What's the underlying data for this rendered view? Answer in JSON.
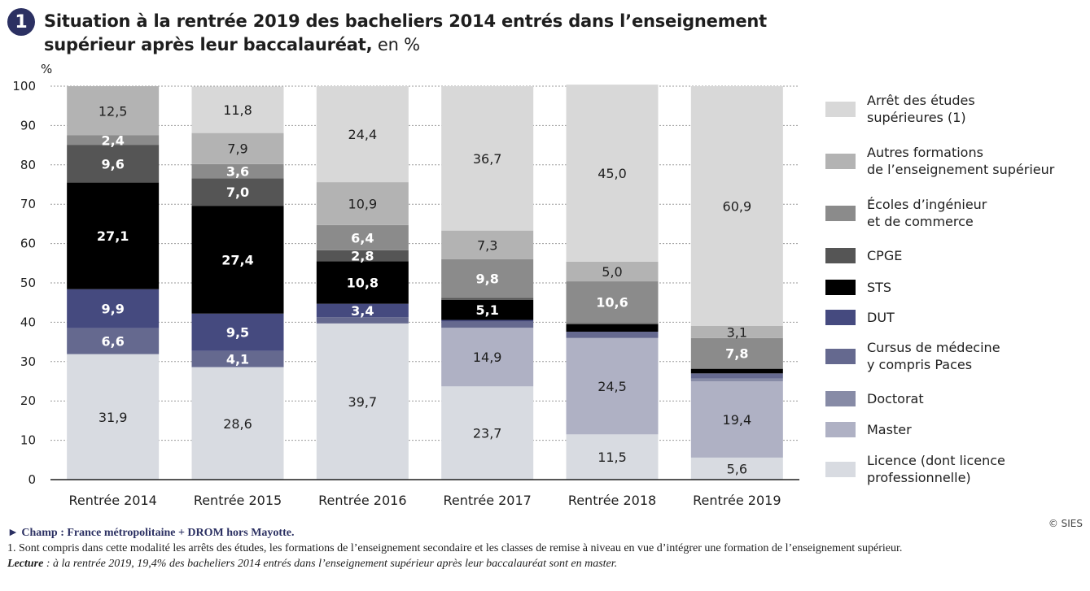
{
  "header": {
    "badge": "1",
    "title": "Situation à la rentrée 2019 des bacheliers 2014 entrés dans l’enseignement supérieur après leur baccalauréat,",
    "unit": " en %"
  },
  "copyright": "© SIES",
  "notes": {
    "champ": "► Champ : France métropolitaine + DROM hors Mayotte.",
    "note1_num": "1.",
    "note1": " Sont compris dans cette modalité les arrêts des études, les formations de l’enseignement secondaire et les classes de remise à niveau en vue d’intégrer une formation de l’enseignement supérieur.",
    "lecture_label": "Lecture",
    "lecture": " : à la rentrée 2019, 19,4% des bacheliers 2014 entrés dans l’enseignement supérieur après leur baccalauréat sont en master."
  },
  "chart_data": {
    "type": "bar",
    "stacked": true,
    "ylabel": "%",
    "ylim": [
      0,
      100
    ],
    "yticks": [
      0,
      10,
      20,
      30,
      40,
      50,
      60,
      70,
      80,
      90,
      100
    ],
    "grid": true,
    "legend_position": "right",
    "categories": [
      "Rentrée 2014",
      "Rentrée 2015",
      "Rentrée 2016",
      "Rentrée 2017",
      "Rentrée 2018",
      "Rentrée 2019"
    ],
    "series": [
      {
        "name": "Licence (dont licence\nprofessionnelle)",
        "color": "#d8dbe1",
        "values": [
          31.9,
          28.6,
          39.7,
          23.7,
          11.5,
          5.6
        ],
        "labels": [
          "31,9",
          "28,6",
          "39,7",
          "23,7",
          "11,5",
          "5,6"
        ],
        "label_color": "#1e1e1e"
      },
      {
        "name": "Master",
        "color": "#afb1c4",
        "values": [
          0,
          0,
          0,
          14.9,
          24.5,
          19.4
        ],
        "labels": [
          "",
          "",
          "",
          "14,9",
          "24,5",
          "19,4"
        ],
        "label_color": "#1e1e1e"
      },
      {
        "name": "Doctorat",
        "color": "#878ba6",
        "values": [
          0,
          0,
          0,
          0,
          0,
          0.7
        ],
        "labels": [
          "",
          "",
          "",
          "",
          "",
          ""
        ],
        "label_color": "#ffffff"
      },
      {
        "name": "Cursus de médecine\ny compris Paces",
        "color": "#65698f",
        "values": [
          6.6,
          4.1,
          1.6,
          1.6,
          1.6,
          1.3
        ],
        "labels": [
          "6,6",
          "4,1",
          "",
          "",
          "",
          ""
        ],
        "label_color": "#ffffff"
      },
      {
        "name": "DUT",
        "color": "#454a7f",
        "values": [
          9.9,
          9.5,
          3.4,
          0.4,
          0.0,
          0.0
        ],
        "labels": [
          "9,9",
          "9,5",
          "3,4",
          "",
          "",
          ""
        ],
        "label_color": "#ffffff"
      },
      {
        "name": "STS",
        "color": "#000000",
        "values": [
          27.1,
          27.4,
          10.8,
          5.1,
          1.9,
          1.1
        ],
        "labels": [
          "27,1",
          "27,4",
          "10,8",
          "5,1",
          "",
          ""
        ],
        "label_color": "#ffffff"
      },
      {
        "name": "CPGE",
        "color": "#555555",
        "values": [
          9.6,
          7.0,
          2.8,
          0.5,
          0.3,
          0.1
        ],
        "labels": [
          "9,6",
          "7,0",
          "2,8",
          "",
          "",
          ""
        ],
        "label_color": "#ffffff"
      },
      {
        "name": "Écoles d’ingénieur\net de commerce",
        "color": "#8b8b8b",
        "values": [
          2.4,
          3.6,
          6.4,
          9.8,
          10.6,
          7.8
        ],
        "labels": [
          "2,4",
          "3,6",
          "6,4",
          "9,8",
          "10,6",
          "7,8"
        ],
        "label_color": "#ffffff"
      },
      {
        "name": "Autres formations\nde l’enseignement supérieur",
        "color": "#b3b3b3",
        "values": [
          12.5,
          7.9,
          10.9,
          7.3,
          5.0,
          3.1
        ],
        "labels": [
          "12,5",
          "7,9",
          "10,9",
          "7,3",
          "5,0",
          "3,1"
        ],
        "label_color": "#1e1e1e"
      },
      {
        "name": "Arrêt des études\nsupérieures (1)",
        "color": "#d8d8d8",
        "values": [
          0,
          11.8,
          24.4,
          36.7,
          45.0,
          60.9
        ],
        "labels": [
          "",
          "11,8",
          "24,4",
          "36,7",
          "45,0",
          "60,9"
        ],
        "label_color": "#1e1e1e"
      }
    ]
  }
}
